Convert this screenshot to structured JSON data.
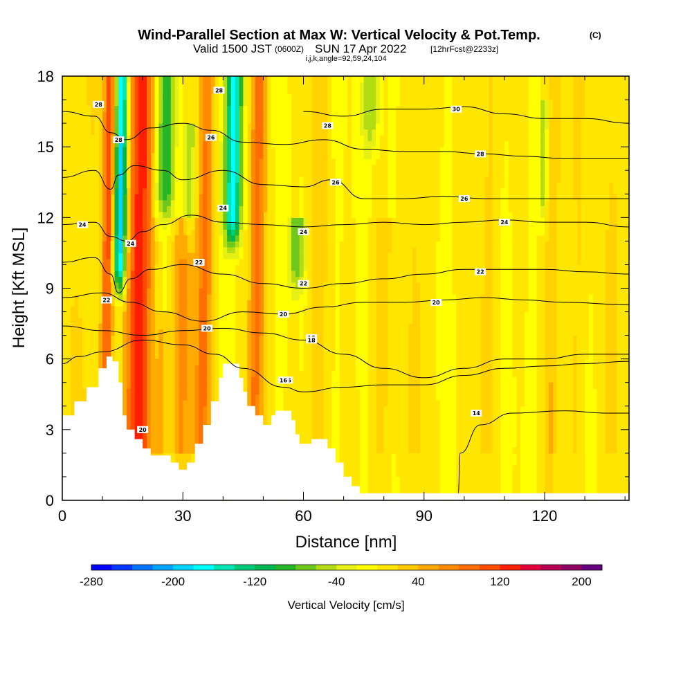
{
  "title": {
    "main": "Wind-Parallel Section at Max W: Vertical Velocity & Pot.Temp.",
    "main_tag": "(C)",
    "valid_pre": "Valid 1500 JST",
    "valid_z": "(0600Z)",
    "valid_date": "SUN 17 Apr 2022",
    "valid_fcst": "[12hrFcst@2233z]",
    "indices": "i,j,k,angle=92,59,24,104"
  },
  "chart_data": {
    "type": "heatmap",
    "xlabel": "Distance [nm]",
    "ylabel": "Height [Kft MSL]",
    "xlim": [
      0,
      141
    ],
    "ylim": [
      0,
      18
    ],
    "x_ticks": [
      0,
      30,
      60,
      90,
      120
    ],
    "y_ticks": [
      0,
      3,
      6,
      9,
      12,
      15,
      18
    ],
    "terrain_kft": [
      [
        0,
        3.6
      ],
      [
        3,
        4.2
      ],
      [
        6,
        4.8
      ],
      [
        9,
        5.6
      ],
      [
        11,
        6.1
      ],
      [
        12.5,
        5.9
      ],
      [
        14,
        5.0
      ],
      [
        15,
        3.6
      ],
      [
        16,
        3.0
      ],
      [
        18,
        2.6
      ],
      [
        20,
        2.2
      ],
      [
        22,
        1.9
      ],
      [
        25,
        1.9
      ],
      [
        27,
        1.6
      ],
      [
        29,
        1.3
      ],
      [
        31,
        1.6
      ],
      [
        33,
        2.4
      ],
      [
        35,
        3.2
      ],
      [
        37,
        4.2
      ],
      [
        39,
        5.2
      ],
      [
        40,
        5.8
      ],
      [
        43,
        5.8
      ],
      [
        44,
        5.2
      ],
      [
        45,
        4.6
      ],
      [
        46,
        4.0
      ],
      [
        48,
        3.6
      ],
      [
        50,
        3.2
      ],
      [
        52,
        3.6
      ],
      [
        53,
        3.8
      ],
      [
        56,
        3.8
      ],
      [
        57,
        3.4
      ],
      [
        58,
        2.8
      ],
      [
        59,
        2.4
      ],
      [
        61,
        2.4
      ],
      [
        62,
        2.6
      ],
      [
        65,
        2.6
      ],
      [
        66,
        2.2
      ],
      [
        68,
        1.6
      ],
      [
        70,
        1.0
      ],
      [
        72,
        0.6
      ],
      [
        74,
        0.3
      ],
      [
        141,
        0.3
      ]
    ],
    "vertical_velocity_cbar": {
      "label": "Vertical Velocity [cm/s]",
      "tick_labels": [
        "-280",
        "-200",
        "-120",
        "-40",
        "40",
        "120",
        "200"
      ],
      "range": [
        -280,
        220
      ],
      "step": 20,
      "colors": [
        "#0000ff",
        "#0037ff",
        "#0073ff",
        "#00a5ff",
        "#00d7ff",
        "#00ffff",
        "#00e6b4",
        "#00cd78",
        "#00b450",
        "#28b428",
        "#6ec81e",
        "#b4dc14",
        "#e6f014",
        "#ffff00",
        "#ffe600",
        "#ffc800",
        "#ffaa00",
        "#ff8c00",
        "#ff6e00",
        "#ff4b00",
        "#ff1e00",
        "#e6003c",
        "#b40050",
        "#8c0064",
        "#640080"
      ]
    },
    "updrafts": [
      {
        "x": 19,
        "w": 3.0,
        "v": 140,
        "top": 18
      },
      {
        "x": 11,
        "w": 1.5,
        "v": 110,
        "top": 18
      },
      {
        "x": 30,
        "w": 3.0,
        "v": 60,
        "top": 12
      },
      {
        "x": 35,
        "w": 2.0,
        "v": 80,
        "top": 18
      },
      {
        "x": 48,
        "w": 2.0,
        "v": 90,
        "top": 18
      },
      {
        "x": 5,
        "w": 3.5,
        "v": 25,
        "top": 18
      },
      {
        "x": 25,
        "w": 2.0,
        "v": 40,
        "top": 8
      },
      {
        "x": 63,
        "w": 2.5,
        "v": 30,
        "top": 18
      },
      {
        "x": 80,
        "w": 3.0,
        "v": 25,
        "top": 12
      },
      {
        "x": 88,
        "w": 2.0,
        "v": 25,
        "top": 18
      },
      {
        "x": 105,
        "w": 4.0,
        "v": 20,
        "top": 18
      },
      {
        "x": 122,
        "w": 2.0,
        "v": 35,
        "top": 18
      },
      {
        "x": 128,
        "w": 2.5,
        "v": 20,
        "top": 18
      },
      {
        "x": 137,
        "w": 2.5,
        "v": 25,
        "top": 18
      }
    ],
    "downdrafts": [
      {
        "x": 14,
        "w": 1.5,
        "v": -200,
        "top": 18,
        "bot": 8
      },
      {
        "x": 25,
        "w": 2.5,
        "v": -90,
        "top": 18,
        "bot": 11
      },
      {
        "x": 42,
        "w": 2.0,
        "v": -180,
        "top": 18,
        "bot": 10
      },
      {
        "x": 31,
        "w": 1.5,
        "v": -60,
        "top": 16,
        "bot": 10
      },
      {
        "x": 58,
        "w": 2.0,
        "v": -80,
        "top": 12,
        "bot": 8
      },
      {
        "x": 76,
        "w": 2.0,
        "v": -60,
        "top": 18,
        "bot": 14
      },
      {
        "x": 119,
        "w": 1.0,
        "v": -60,
        "top": 17,
        "bot": 11
      }
    ],
    "theta_contours": [
      {
        "label": "14",
        "pts": [
          [
            98.5,
            0.3
          ],
          [
            99,
            2
          ],
          [
            104,
            3.2
          ],
          [
            112,
            3.7
          ],
          [
            125,
            3.8
          ],
          [
            135,
            3.7
          ],
          [
            141,
            3.7
          ]
        ],
        "label_at": [
          103,
          3.7
        ]
      },
      {
        "label": "16",
        "pts": [
          [
            0,
            5.8
          ],
          [
            4,
            6.1
          ],
          [
            10,
            6.3
          ],
          [
            20,
            6.8
          ],
          [
            30,
            6.6
          ],
          [
            38,
            6.2
          ],
          [
            45,
            5.6
          ],
          [
            55,
            4.8
          ],
          [
            60,
            4.6
          ],
          [
            70,
            4.8
          ],
          [
            80,
            4.9
          ],
          [
            90,
            4.9
          ],
          [
            100,
            5.3
          ],
          [
            110,
            5.6
          ],
          [
            120,
            5.7
          ],
          [
            130,
            5.8
          ],
          [
            141,
            5.9
          ]
        ],
        "label_at": [
          56,
          5.1
        ]
      },
      {
        "label": "18",
        "pts": [
          [
            0,
            7.4
          ],
          [
            10,
            7.2
          ],
          [
            20,
            7.0
          ],
          [
            30,
            7.2
          ],
          [
            40,
            7.3
          ],
          [
            50,
            7.1
          ],
          [
            60,
            6.8
          ],
          [
            70,
            6.2
          ],
          [
            80,
            5.6
          ],
          [
            90,
            5.2
          ],
          [
            100,
            5.6
          ],
          [
            110,
            6.0
          ],
          [
            120,
            6.0
          ],
          [
            130,
            6.2
          ],
          [
            141,
            6.2
          ]
        ],
        "label_at": [
          62,
          6.9
        ]
      },
      {
        "label": "20",
        "pts": [
          [
            0,
            8.6
          ],
          [
            10,
            8.8
          ],
          [
            17,
            8.4
          ],
          [
            25,
            8.0
          ],
          [
            35,
            7.6
          ],
          [
            45,
            8.0
          ],
          [
            55,
            7.9
          ],
          [
            65,
            8.2
          ],
          [
            75,
            8.4
          ],
          [
            85,
            8.4
          ],
          [
            95,
            8.5
          ],
          [
            105,
            8.6
          ],
          [
            115,
            8.5
          ],
          [
            125,
            8.4
          ],
          [
            141,
            8.3
          ]
        ],
        "label_at": [
          93,
          8.4
        ]
      },
      {
        "label": "22",
        "pts": [
          [
            0,
            10.1
          ],
          [
            8,
            10.3
          ],
          [
            12,
            9.6
          ],
          [
            14,
            8.8
          ],
          [
            17,
            9.4
          ],
          [
            22,
            9.8
          ],
          [
            30,
            10.0
          ],
          [
            40,
            9.6
          ],
          [
            50,
            9.2
          ],
          [
            60,
            9.0
          ],
          [
            70,
            9.2
          ],
          [
            80,
            9.4
          ],
          [
            90,
            9.6
          ],
          [
            100,
            9.8
          ],
          [
            110,
            9.8
          ],
          [
            120,
            9.8
          ],
          [
            130,
            9.7
          ],
          [
            141,
            9.6
          ]
        ],
        "label_at": [
          104,
          9.7
        ]
      },
      {
        "label": "24",
        "pts": [
          [
            0,
            11.7
          ],
          [
            8,
            11.8
          ],
          [
            12,
            11.2
          ],
          [
            16,
            11.0
          ],
          [
            20,
            11.4
          ],
          [
            25,
            11.7
          ],
          [
            32,
            12.1
          ],
          [
            40,
            11.8
          ],
          [
            50,
            11.7
          ],
          [
            60,
            11.6
          ],
          [
            70,
            11.7
          ],
          [
            80,
            11.8
          ],
          [
            90,
            11.7
          ],
          [
            100,
            11.8
          ],
          [
            110,
            11.9
          ],
          [
            120,
            11.8
          ],
          [
            130,
            11.8
          ],
          [
            141,
            11.6
          ]
        ],
        "label_at": [
          110,
          11.8
        ]
      },
      {
        "label": "26",
        "pts": [
          [
            0,
            13.7
          ],
          [
            8,
            14.0
          ],
          [
            12,
            13.2
          ],
          [
            14,
            13.8
          ],
          [
            18,
            14.2
          ],
          [
            25,
            14.0
          ],
          [
            30,
            13.6
          ],
          [
            40,
            14.0
          ],
          [
            50,
            13.4
          ],
          [
            60,
            13.3
          ],
          [
            67,
            13.6
          ],
          [
            75,
            12.8
          ],
          [
            85,
            12.8
          ],
          [
            95,
            12.9
          ],
          [
            105,
            12.8
          ],
          [
            115,
            12.8
          ],
          [
            125,
            12.8
          ],
          [
            141,
            12.8
          ]
        ],
        "label_at": [
          100,
          12.8
        ]
      },
      {
        "label": "28",
        "pts": [
          [
            0,
            16.5
          ],
          [
            8,
            16.3
          ],
          [
            12,
            15.6
          ],
          [
            16,
            15.3
          ],
          [
            22,
            15.8
          ],
          [
            30,
            16.0
          ],
          [
            37,
            15.7
          ],
          [
            45,
            15.2
          ],
          [
            55,
            15.1
          ],
          [
            65,
            15.3
          ],
          [
            75,
            14.9
          ],
          [
            85,
            14.8
          ],
          [
            95,
            14.8
          ],
          [
            105,
            14.7
          ],
          [
            115,
            14.6
          ],
          [
            125,
            14.5
          ],
          [
            141,
            14.5
          ]
        ],
        "label_at": [
          104,
          14.7
        ]
      },
      {
        "label": "30",
        "pts": [
          [
            60,
            16.5
          ],
          [
            70,
            16.3
          ],
          [
            80,
            16.6
          ],
          [
            90,
            16.6
          ],
          [
            100,
            16.7
          ],
          [
            110,
            16.4
          ],
          [
            120,
            16.2
          ],
          [
            130,
            16.2
          ],
          [
            141,
            16.0
          ]
        ],
        "label_at": [
          98,
          16.6
        ]
      }
    ],
    "extra_contour_labels": [
      {
        "label": "28",
        "at": [
          39,
          17.4
        ]
      },
      {
        "label": "26",
        "at": [
          37,
          15.4
        ]
      },
      {
        "label": "24",
        "at": [
          40,
          12.4
        ]
      },
      {
        "label": "22",
        "at": [
          34,
          10.1
        ]
      },
      {
        "label": "20",
        "at": [
          36,
          7.3
        ]
      },
      {
        "label": "20",
        "at": [
          20,
          3.0
        ]
      },
      {
        "label": "22",
        "at": [
          11,
          8.5
        ]
      },
      {
        "label": "24",
        "at": [
          17,
          10.9
        ]
      },
      {
        "label": "28",
        "at": [
          14,
          15.3
        ]
      },
      {
        "label": "28",
        "at": [
          9,
          16.8
        ]
      },
      {
        "label": "24",
        "at": [
          5,
          11.7
        ]
      },
      {
        "label": "24",
        "at": [
          60,
          11.4
        ]
      },
      {
        "label": "22",
        "at": [
          60,
          9.2
        ]
      },
      {
        "label": "20",
        "at": [
          55,
          7.9
        ]
      },
      {
        "label": "18",
        "at": [
          62,
          6.8
        ]
      },
      {
        "label": "16",
        "at": [
          55,
          5.1
        ]
      },
      {
        "label": "26",
        "at": [
          68,
          13.5
        ]
      },
      {
        "label": "28",
        "at": [
          66,
          15.9
        ]
      }
    ]
  }
}
